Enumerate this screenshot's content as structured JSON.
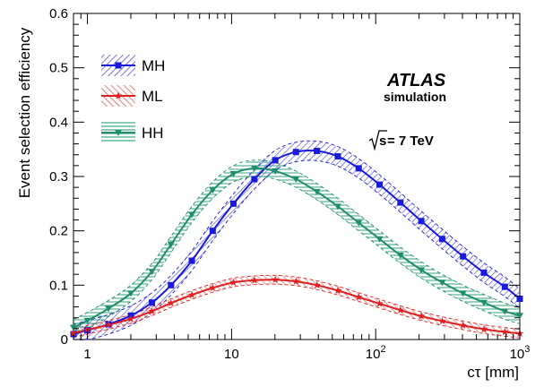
{
  "chart_data": {
    "type": "line",
    "xlabel": "cτ [mm]",
    "ylabel": "Event selection efficiency",
    "xscale": "log",
    "xlim": [
      0.8,
      1000
    ],
    "ylim": [
      0,
      0.6
    ],
    "x_ticks": [
      {
        "value": 1,
        "label": "1"
      },
      {
        "value": 10,
        "label": "10"
      },
      {
        "value": 100,
        "label": "10",
        "sup": "2"
      },
      {
        "value": 1000,
        "label": "10",
        "sup": "3"
      }
    ],
    "y_ticks": [
      {
        "value": 0,
        "label": "0"
      },
      {
        "value": 0.1,
        "label": "0.1"
      },
      {
        "value": 0.2,
        "label": "0.2"
      },
      {
        "value": 0.3,
        "label": "0.3"
      },
      {
        "value": 0.4,
        "label": "0.4"
      },
      {
        "value": 0.5,
        "label": "0.5"
      },
      {
        "value": 0.6,
        "label": "0.6"
      }
    ],
    "legend_position": "top-left",
    "annotations": {
      "experiment": "ATLAS",
      "status": "simulation",
      "energy_prefix": "s",
      "energy_suffix": " = 7 TeV"
    },
    "series": [
      {
        "name": "MH",
        "color": "#1a1adc",
        "marker": "square",
        "x": [
          0.8,
          1.0,
          1.4,
          2.0,
          2.8,
          3.8,
          5.3,
          7.4,
          10.3,
          14.4,
          20.1,
          28.0,
          39.1,
          54.6,
          76.2,
          106.4,
          148.5,
          207.3,
          289.4,
          403.9,
          563.9,
          787.3,
          1000
        ],
        "values": [
          0.01,
          0.017,
          0.028,
          0.044,
          0.068,
          0.1,
          0.145,
          0.2,
          0.25,
          0.295,
          0.33,
          0.345,
          0.347,
          0.337,
          0.315,
          0.285,
          0.252,
          0.218,
          0.185,
          0.153,
          0.123,
          0.097,
          0.075
        ],
        "band": 0.018
      },
      {
        "name": "ML",
        "color": "#e02020",
        "marker": "star",
        "x": [
          0.8,
          1.0,
          1.4,
          2.0,
          2.8,
          3.8,
          5.3,
          7.4,
          10.3,
          14.4,
          20.1,
          28.0,
          39.1,
          54.6,
          76.2,
          106.4,
          148.5,
          207.3,
          289.4,
          403.9,
          563.9,
          787.3,
          1000
        ],
        "values": [
          0.012,
          0.018,
          0.027,
          0.038,
          0.052,
          0.067,
          0.082,
          0.095,
          0.105,
          0.109,
          0.11,
          0.107,
          0.1,
          0.09,
          0.078,
          0.066,
          0.054,
          0.043,
          0.034,
          0.026,
          0.019,
          0.014,
          0.011
        ],
        "band": 0.008
      },
      {
        "name": "HH",
        "color": "#1f8f6a",
        "marker": "triangle-down",
        "x": [
          0.8,
          1.0,
          1.4,
          2.0,
          2.8,
          3.8,
          5.3,
          7.4,
          10.3,
          14.4,
          20.1,
          28.0,
          39.1,
          54.6,
          76.2,
          106.4,
          148.5,
          207.3,
          289.4,
          403.9,
          563.9,
          787.3,
          1000
        ],
        "values": [
          0.022,
          0.035,
          0.057,
          0.085,
          0.125,
          0.175,
          0.23,
          0.275,
          0.305,
          0.315,
          0.31,
          0.295,
          0.272,
          0.245,
          0.215,
          0.185,
          0.155,
          0.128,
          0.105,
          0.085,
          0.068,
          0.052,
          0.044
        ],
        "band": 0.015
      }
    ]
  }
}
